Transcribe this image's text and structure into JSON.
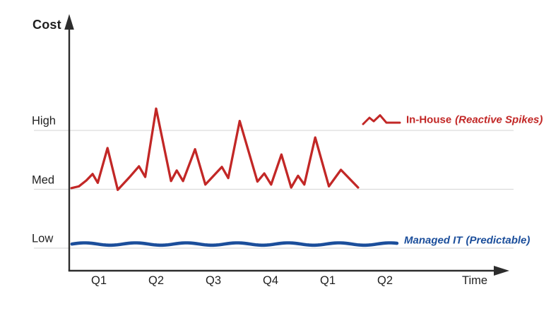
{
  "page": {
    "background": "#ffffff"
  },
  "chart_data": {
    "type": "line",
    "title": "",
    "x_axis": {
      "title": "Time",
      "tick_labels": [
        "Q1",
        "Q2",
        "Q3",
        "Q4",
        "Q1",
        "Q2"
      ],
      "tick_positions": [
        1,
        2,
        3,
        4,
        5,
        6
      ],
      "range": [
        0.52,
        7.2
      ],
      "arrow": true
    },
    "y_axis": {
      "title": "Cost",
      "tick_labels": [
        "High",
        "Med",
        "Low"
      ],
      "tick_values": [
        3,
        2,
        1
      ],
      "range": [
        0.6,
        5.0
      ],
      "arrow": true
    },
    "grid": {
      "show": true,
      "color": "#dcdcdc",
      "levels": [
        3,
        2,
        1
      ]
    },
    "axis_color": "#2d2d2d",
    "series": [
      {
        "name": "In-House (Reactive Spikes)",
        "label_main": "In-House",
        "label_qualifier": "(Reactive Spikes)",
        "color": "#c22726",
        "style": "jagged-spikes",
        "points": [
          [
            0.52,
            2.02
          ],
          [
            0.65,
            2.05
          ],
          [
            0.78,
            2.15
          ],
          [
            0.89,
            2.26
          ],
          [
            0.98,
            2.11
          ],
          [
            1.15,
            2.7
          ],
          [
            1.33,
            1.99
          ],
          [
            1.53,
            2.2
          ],
          [
            1.7,
            2.39
          ],
          [
            1.81,
            2.21
          ],
          [
            2.0,
            3.37
          ],
          [
            2.26,
            2.14
          ],
          [
            2.36,
            2.32
          ],
          [
            2.47,
            2.14
          ],
          [
            2.68,
            2.68
          ],
          [
            2.86,
            2.08
          ],
          [
            3.15,
            2.38
          ],
          [
            3.26,
            2.19
          ],
          [
            3.46,
            3.16
          ],
          [
            3.77,
            2.13
          ],
          [
            3.89,
            2.27
          ],
          [
            4.01,
            2.08
          ],
          [
            4.19,
            2.59
          ],
          [
            4.36,
            2.03
          ],
          [
            4.48,
            2.23
          ],
          [
            4.59,
            2.08
          ],
          [
            4.78,
            2.88
          ],
          [
            5.02,
            2.05
          ],
          [
            5.23,
            2.33
          ],
          [
            5.53,
            2.03
          ]
        ]
      },
      {
        "name": "Managed IT (Predictable)",
        "label_main": "Managed IT",
        "label_qualifier": "(Predictable)",
        "color": "#1b4e9b",
        "style": "flat-wavy",
        "baseline_value": 1.07,
        "wave_amplitude": 0.02,
        "t_start": 0.53,
        "t_end": 6.25
      }
    ],
    "legend_position": "right-of-line-ends"
  }
}
